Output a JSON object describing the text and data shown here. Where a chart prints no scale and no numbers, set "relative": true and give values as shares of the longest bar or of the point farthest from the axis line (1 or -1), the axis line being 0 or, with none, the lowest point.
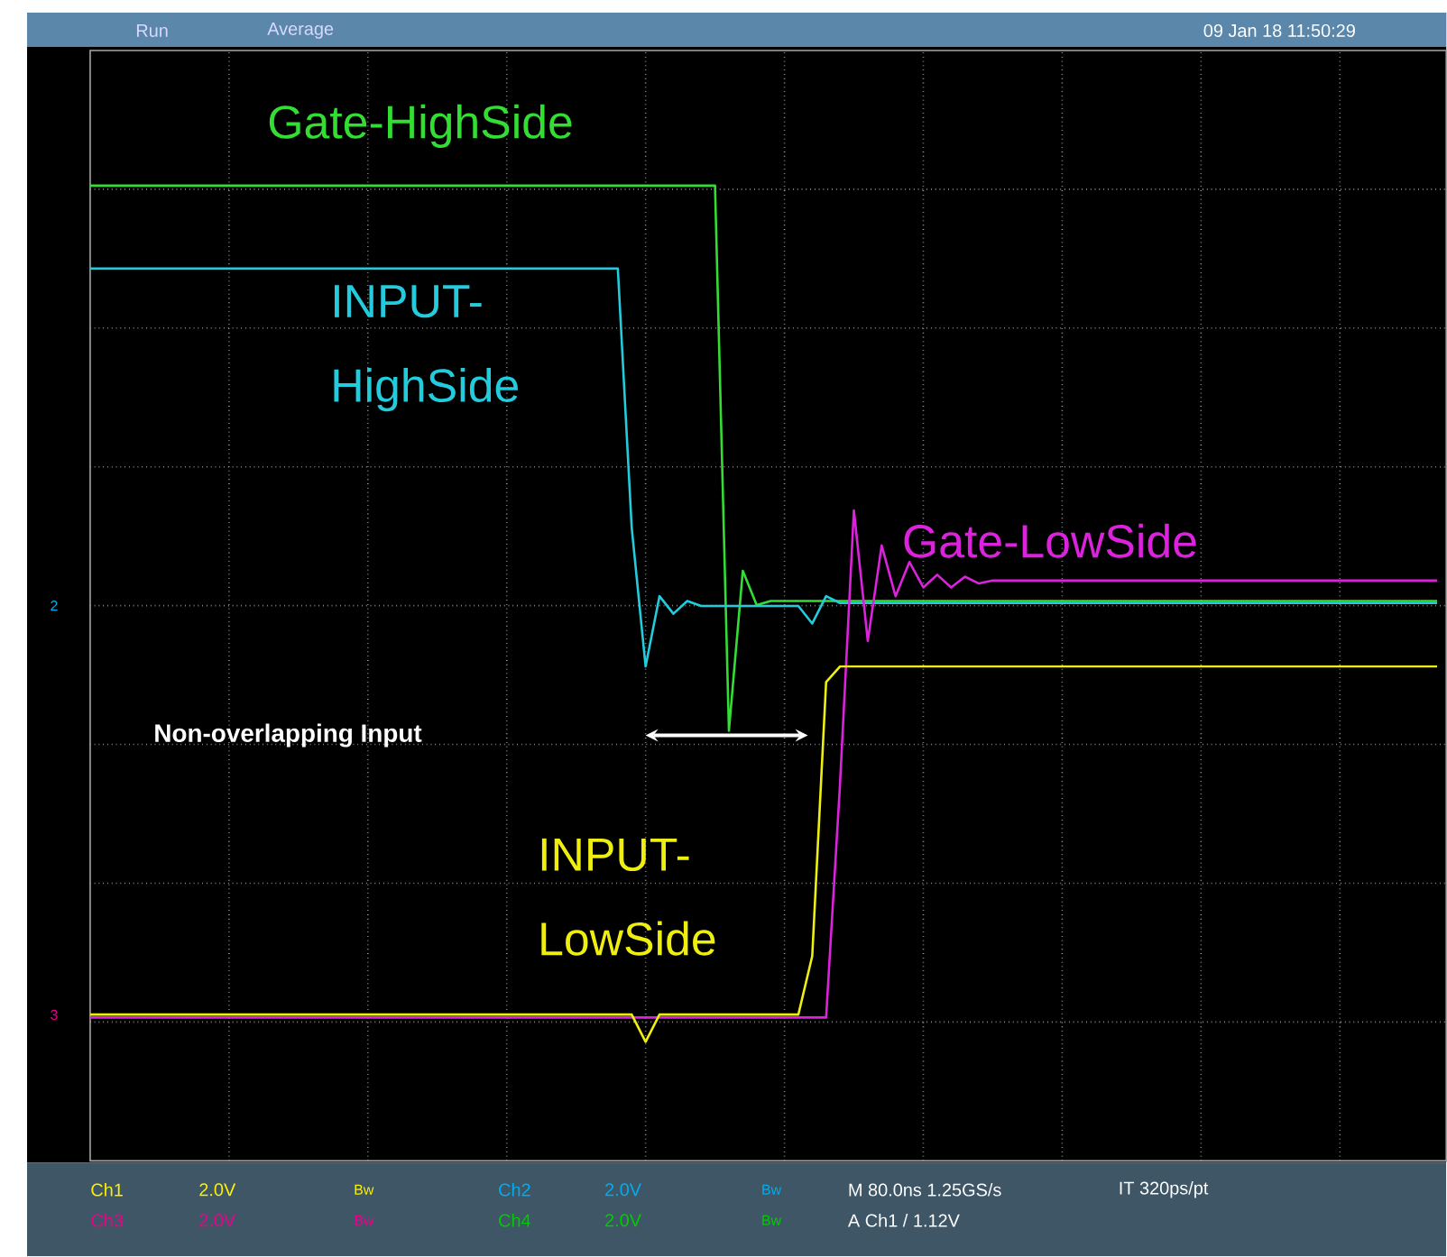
{
  "chart_data": {
    "type": "line",
    "relative": true,
    "grid": true,
    "categories": [
      null,
      null,
      null,
      null,
      null,
      null,
      null,
      null,
      null,
      null,
      null,
      null,
      null,
      null,
      null,
      null,
      null,
      null,
      null,
      null,
      null,
      null,
      null,
      null,
      null,
      null,
      null,
      null,
      null,
      null,
      null,
      null,
      null,
      null,
      null,
      null,
      null,
      null,
      null,
      null,
      null,
      null,
      null,
      null,
      null,
      null,
      null,
      null,
      null,
      null,
      null,
      null,
      null,
      null,
      null,
      null,
      null,
      null,
      null,
      null,
      null,
      null,
      null,
      null,
      null,
      null,
      null,
      null,
      null,
      null,
      null,
      null,
      null,
      null,
      null,
      null,
      null,
      null,
      null,
      null,
      null,
      null,
      null,
      null,
      null,
      null,
      null,
      null,
      null,
      null,
      null,
      null,
      null,
      null,
      null,
      null,
      null,
      null
    ],
    "series": [
      {
        "name": "Gate-HighSide",
        "color": "#33dd33",
        "values": [
          1,
          1,
          1,
          1,
          1,
          1,
          1,
          1,
          1,
          1,
          1,
          1,
          1,
          1,
          1,
          1,
          1,
          1,
          1,
          1,
          1,
          1,
          1,
          1,
          1,
          1,
          1,
          1,
          1,
          1,
          1,
          1,
          1,
          1,
          1,
          1,
          1,
          1,
          1,
          1,
          1,
          1,
          1,
          1,
          1,
          1,
          0.441,
          0.605,
          0.57,
          0.574,
          0.574,
          0.574,
          0.574,
          0.574,
          0.574,
          0.574,
          0.574,
          0.574,
          0.574,
          0.574,
          0.574,
          0.574,
          0.574,
          0.574,
          0.574,
          0.574,
          0.574,
          0.574,
          0.574,
          0.574,
          0.574,
          0.574,
          0.574,
          0.574,
          0.574,
          0.574,
          0.574,
          0.574,
          0.574,
          0.574,
          0.574,
          0.574,
          0.574,
          0.574,
          0.574,
          0.574,
          0.574,
          0.574,
          0.574,
          0.574,
          0.574,
          0.574,
          0.574,
          0.574,
          0.574,
          0.574,
          0.574,
          0.574
        ]
      },
      {
        "name": "INPUT-HighSide",
        "color": "#22ccdd",
        "values": [
          0.915,
          0.915,
          0.915,
          0.915,
          0.915,
          0.915,
          0.915,
          0.915,
          0.915,
          0.915,
          0.915,
          0.915,
          0.915,
          0.915,
          0.915,
          0.915,
          0.915,
          0.915,
          0.915,
          0.915,
          0.915,
          0.915,
          0.915,
          0.915,
          0.915,
          0.915,
          0.915,
          0.915,
          0.915,
          0.915,
          0.915,
          0.915,
          0.915,
          0.915,
          0.915,
          0.915,
          0.915,
          0.915,
          0.915,
          0.649,
          0.507,
          0.579,
          0.561,
          0.574,
          0.569,
          0.569,
          0.569,
          0.569,
          0.569,
          0.569,
          0.569,
          0.569,
          0.551,
          0.579,
          0.572,
          0.572,
          0.572,
          0.572,
          0.572,
          0.572,
          0.572,
          0.572,
          0.572,
          0.572,
          0.572,
          0.572,
          0.572,
          0.572,
          0.572,
          0.572,
          0.572,
          0.572,
          0.572,
          0.572,
          0.572,
          0.572,
          0.572,
          0.572,
          0.572,
          0.572,
          0.572,
          0.572,
          0.572,
          0.572,
          0.572,
          0.572,
          0.572,
          0.572,
          0.572,
          0.572,
          0.572,
          0.572,
          0.572,
          0.572,
          0.572,
          0.572,
          0.572,
          0.572
        ]
      },
      {
        "name": "Gate-LowSide",
        "color": "#dd22dd",
        "values": [
          0.147,
          0.147,
          0.147,
          0.147,
          0.147,
          0.147,
          0.147,
          0.147,
          0.147,
          0.147,
          0.147,
          0.147,
          0.147,
          0.147,
          0.147,
          0.147,
          0.147,
          0.147,
          0.147,
          0.147,
          0.147,
          0.147,
          0.147,
          0.147,
          0.147,
          0.147,
          0.147,
          0.147,
          0.147,
          0.147,
          0.147,
          0.147,
          0.147,
          0.147,
          0.147,
          0.147,
          0.147,
          0.147,
          0.147,
          0.147,
          0.147,
          0.147,
          0.147,
          0.147,
          0.147,
          0.147,
          0.147,
          0.147,
          0.147,
          0.147,
          0.147,
          0.147,
          0.147,
          0.147,
          0.386,
          0.667,
          0.533,
          0.631,
          0.579,
          0.614,
          0.588,
          0.601,
          0.588,
          0.599,
          0.592,
          0.595,
          0.595,
          0.595,
          0.595,
          0.595,
          0.595,
          0.595,
          0.595,
          0.595,
          0.595,
          0.595,
          0.595,
          0.595,
          0.595,
          0.595,
          0.595,
          0.595,
          0.595,
          0.595,
          0.595,
          0.595,
          0.595,
          0.595,
          0.595,
          0.595,
          0.595,
          0.595,
          0.595,
          0.595,
          0.595,
          0.595,
          0.595,
          0.595
        ]
      },
      {
        "name": "INPUT-LowSide",
        "color": "#eeee11",
        "values": [
          0.15,
          0.15,
          0.15,
          0.15,
          0.15,
          0.15,
          0.15,
          0.15,
          0.15,
          0.15,
          0.15,
          0.15,
          0.15,
          0.15,
          0.15,
          0.15,
          0.15,
          0.15,
          0.15,
          0.15,
          0.15,
          0.15,
          0.15,
          0.15,
          0.15,
          0.15,
          0.15,
          0.15,
          0.15,
          0.15,
          0.15,
          0.15,
          0.15,
          0.15,
          0.15,
          0.15,
          0.15,
          0.15,
          0.15,
          0.15,
          0.122,
          0.15,
          0.15,
          0.15,
          0.15,
          0.15,
          0.15,
          0.15,
          0.15,
          0.15,
          0.15,
          0.15,
          0.21,
          0.491,
          0.507,
          0.507,
          0.507,
          0.507,
          0.507,
          0.507,
          0.507,
          0.507,
          0.507,
          0.507,
          0.507,
          0.507,
          0.507,
          0.507,
          0.507,
          0.507,
          0.507,
          0.507,
          0.507,
          0.507,
          0.507,
          0.507,
          0.507,
          0.507,
          0.507,
          0.507,
          0.507,
          0.507,
          0.507,
          0.507,
          0.507,
          0.507,
          0.507,
          0.507,
          0.507,
          0.507,
          0.507,
          0.507,
          0.507,
          0.507,
          0.507,
          0.507,
          0.507,
          0.507
        ]
      }
    ],
    "annotations": [
      "Run",
      "Average",
      "09 Jan 18 11:50:29",
      "2",
      "3",
      "Non-overlapping Input",
      "Ch1",
      "2.0V",
      "Bw",
      "Ch2",
      "2.0V",
      "Bw",
      "M 80.0ns 1.25GS/s",
      "IT 320ps/pt",
      "Ch3",
      "2.0V",
      "Bw",
      "Ch4",
      "2.0V",
      "Bw",
      "A Ch1 / 1.12V"
    ]
  }
}
